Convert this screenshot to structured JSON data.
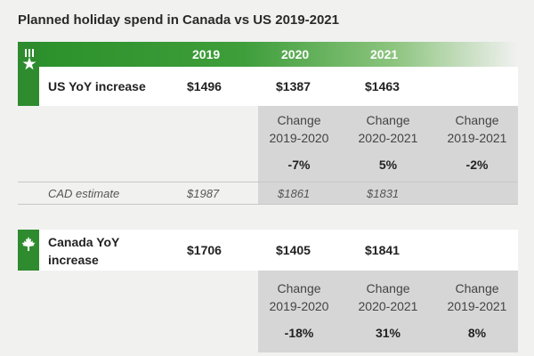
{
  "chart_data": {
    "type": "table",
    "title": "Planned holiday spend in Canada vs US 2019-2021",
    "years": [
      "2019",
      "2020",
      "2021"
    ],
    "us": {
      "label": "US YoY increase",
      "values": [
        "$1496",
        "$1387",
        "$1463"
      ],
      "changes": [
        {
          "label_line1": "Change",
          "label_line2": "2019-2020",
          "value": "-7%"
        },
        {
          "label_line1": "Change",
          "label_line2": "2020-2021",
          "value": "5%"
        },
        {
          "label_line1": "Change",
          "label_line2": "2019-2021",
          "value": "-2%"
        }
      ],
      "cad_estimate": {
        "label": "CAD estimate",
        "values": [
          "$1987",
          "$1861",
          "$1831"
        ]
      }
    },
    "canada": {
      "label": "Canada YoY increase",
      "values": [
        "$1706",
        "$1405",
        "$1841"
      ],
      "changes": [
        {
          "label_line1": "Change",
          "label_line2": "2019-2020",
          "value": "-18%"
        },
        {
          "label_line1": "Change",
          "label_line2": "2020-2021",
          "value": "31%"
        },
        {
          "label_line1": "Change",
          "label_line2": "2019-2021",
          "value": "8%"
        }
      ]
    }
  },
  "colors": {
    "brand_green": "#2e8b2e",
    "shade_gray": "#d6d6d6"
  }
}
